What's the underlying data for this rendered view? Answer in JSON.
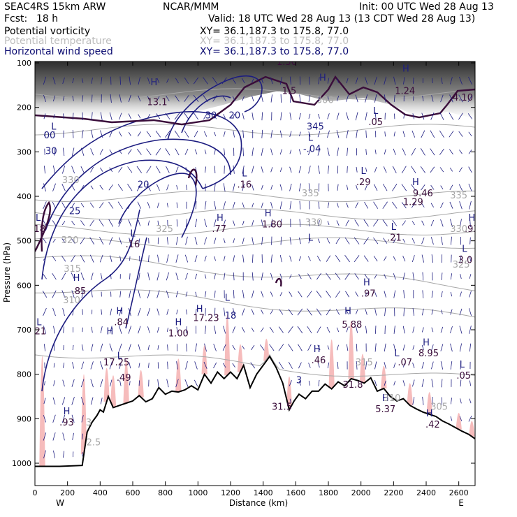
{
  "header": {
    "model": "SEAC4RS 15km ARW",
    "center": "NCAR/MMM",
    "init": "Init: 00 UTC Wed 28 Aug 13",
    "fcst_label": "Fcst:",
    "fcst_value": "18 h",
    "valid": "Valid: 18 UTC Wed 28 Aug 13 (13 CDT Wed 28 Aug 13)",
    "fields": [
      {
        "name": "Potential vorticity",
        "xy": "XY=   36.1,187.3 to 175.8, 77.0"
      },
      {
        "name": "Potential temperature",
        "xy": "XY=   36.1,187.3 to 175.8, 77.0"
      },
      {
        "name": "Horizontal wind speed",
        "xy": "XY=   36.1,187.3 to 175.8, 77.0"
      }
    ]
  },
  "colors": {
    "pv": "#3a0d3a",
    "theta": "#a8a8a8",
    "wind_contour": "#1c1c80",
    "wind_vector": "#1c1c80",
    "terrain": "#000000",
    "cloud_shading": "#9a9a9a",
    "precip_shading": "#f6bcbc"
  },
  "chart_data": {
    "type": "cross-section",
    "xlabel": "Distance (km)",
    "ylabel": "Pressure (hPa)",
    "xlim": [
      0,
      2700
    ],
    "ylim": [
      1050,
      100
    ],
    "x_ticks": [
      0,
      200,
      400,
      600,
      800,
      1000,
      1200,
      1400,
      1600,
      1800,
      2000,
      2200,
      2400,
      2600
    ],
    "y_ticks": [
      100,
      200,
      300,
      400,
      500,
      600,
      700,
      800,
      900,
      1000
    ],
    "x_end_labels": {
      "left": "W",
      "right": "E"
    },
    "terrain_profile": {
      "x": [
        0,
        150,
        290,
        320,
        350,
        380,
        400,
        420,
        450,
        480,
        520,
        560,
        600,
        640,
        680,
        720,
        760,
        800,
        840,
        880,
        920,
        960,
        1000,
        1040,
        1080,
        1120,
        1160,
        1200,
        1240,
        1280,
        1320,
        1360,
        1400,
        1440,
        1480,
        1520,
        1560,
        1590,
        1620,
        1660,
        1700,
        1740,
        1780,
        1820,
        1860,
        1900,
        1940,
        1980,
        2020,
        2060,
        2100,
        2140,
        2180,
        2220,
        2260,
        2300,
        2340,
        2380,
        2420,
        2460,
        2500,
        2540,
        2580,
        2620,
        2660,
        2700
      ],
      "pressure_hpa": [
        1007,
        1007,
        1005,
        930,
        908,
        893,
        880,
        885,
        850,
        875,
        870,
        865,
        860,
        848,
        862,
        855,
        830,
        845,
        838,
        840,
        835,
        826,
        835,
        800,
        820,
        795,
        810,
        795,
        810,
        780,
        830,
        800,
        780,
        760,
        785,
        820,
        880,
        860,
        845,
        855,
        838,
        838,
        822,
        833,
        817,
        826,
        810,
        814,
        820,
        808,
        838,
        832,
        850,
        860,
        855,
        870,
        878,
        885,
        890,
        895,
        905,
        912,
        920,
        928,
        935,
        945
      ]
    },
    "theta_contours_K": [
      300,
      305,
      310,
      315,
      320,
      325,
      330,
      335,
      345
    ],
    "wind_speed_contours": [
      15,
      20,
      25,
      30
    ],
    "extrema_labels": [
      {
        "text": "L",
        "x": 20,
        "p": 455
      },
      {
        "text": ".18",
        "x": 20,
        "p": 480
      },
      {
        "text": "L",
        "x": 25,
        "p": 690
      },
      {
        "text": ".21",
        "x": 25,
        "p": 710
      },
      {
        "text": "L",
        "x": 115,
        "p": 250
      },
      {
        "text": "00",
        "x": 90,
        "p": 270
      },
      {
        "text": "30",
        "x": 100,
        "p": 305
      },
      {
        "text": "25",
        "x": 245,
        "p": 440
      },
      {
        "text": "H",
        "x": 255,
        "p": 590
      },
      {
        "text": ".85",
        "x": 270,
        "p": 620
      },
      {
        "text": "H",
        "x": 195,
        "p": 890
      },
      {
        "text": ".93",
        "x": 195,
        "p": 915
      },
      {
        "text": "L",
        "x": 600,
        "p": 490
      },
      {
        "text": ".16",
        "x": 600,
        "p": 515
      },
      {
        "text": "H",
        "x": 520,
        "p": 665
      },
      {
        "text": ".84",
        "x": 530,
        "p": 690
      },
      {
        "text": "H",
        "x": 460,
        "p": 710
      },
      {
        "text": "17.25",
        "x": 500,
        "p": 780
      },
      {
        "text": "L",
        "x": 520,
        "p": 765
      },
      {
        "text": ".49",
        "x": 545,
        "p": 815
      },
      {
        "text": "20",
        "x": 665,
        "p": 380
      },
      {
        "text": "H",
        "x": 730,
        "p": 150
      },
      {
        "text": "13.1",
        "x": 750,
        "p": 195
      },
      {
        "text": "H",
        "x": 880,
        "p": 690
      },
      {
        "text": "1.00",
        "x": 880,
        "p": 715
      },
      {
        "text": "H",
        "x": 1010,
        "p": 660
      },
      {
        "text": "17.23",
        "x": 1050,
        "p": 680
      },
      {
        "text": "H",
        "x": 1135,
        "p": 455
      },
      {
        "text": ".77",
        "x": 1130,
        "p": 480
      },
      {
        "text": "L",
        "x": 1180,
        "p": 635
      },
      {
        "text": "18",
        "x": 1200,
        "p": 675
      },
      {
        "text": "30",
        "x": 1080,
        "p": 225
      },
      {
        "text": "20",
        "x": 1225,
        "p": 225
      },
      {
        "text": "L",
        "x": 1285,
        "p": 355
      },
      {
        "text": ".16",
        "x": 1285,
        "p": 380
      },
      {
        "text": "H",
        "x": 1430,
        "p": 445
      },
      {
        "text": "1.80",
        "x": 1455,
        "p": 470
      },
      {
        "text": "1.30",
        "x": 1545,
        "p": 105
      },
      {
        "text": "1.5",
        "x": 1560,
        "p": 170
      },
      {
        "text": "345",
        "x": 1720,
        "p": 250
      },
      {
        "text": "L",
        "x": 1690,
        "p": 275
      },
      {
        "text": "-.04",
        "x": 1700,
        "p": 300
      },
      {
        "text": "L",
        "x": 1690,
        "p": 500
      },
      {
        "text": "H",
        "x": 1765,
        "p": 140
      },
      {
        "text": "H",
        "x": 1730,
        "p": 750
      },
      {
        "text": ".46",
        "x": 1740,
        "p": 775
      },
      {
        "text": "L",
        "x": 2015,
        "p": 350
      },
      {
        "text": ".29",
        "x": 2015,
        "p": 375
      },
      {
        "text": "L",
        "x": 2090,
        "p": 215
      },
      {
        "text": ".05",
        "x": 2090,
        "p": 240
      },
      {
        "text": "H",
        "x": 2035,
        "p": 600
      },
      {
        "text": ".97",
        "x": 2045,
        "p": 625
      },
      {
        "text": "H",
        "x": 1920,
        "p": 665
      },
      {
        "text": "5.88",
        "x": 1945,
        "p": 695
      },
      {
        "text": "L",
        "x": 2200,
        "p": 475
      },
      {
        "text": ".21",
        "x": 2205,
        "p": 500
      },
      {
        "text": "H",
        "x": 2275,
        "p": 120
      },
      {
        "text": "1.24",
        "x": 2270,
        "p": 170
      },
      {
        "text": "H",
        "x": 2335,
        "p": 375
      },
      {
        "text": "9.46",
        "x": 2380,
        "p": 400
      },
      {
        "text": "1.29",
        "x": 2320,
        "p": 420
      },
      {
        "text": "L",
        "x": 2220,
        "p": 760
      },
      {
        "text": ".07",
        "x": 2270,
        "p": 780
      },
      {
        "text": "H",
        "x": 2150,
        "p": 860
      },
      {
        "text": "5.37",
        "x": 2150,
        "p": 885
      },
      {
        "text": "H",
        "x": 2400,
        "p": 735
      },
      {
        "text": "8.95",
        "x": 2415,
        "p": 760
      },
      {
        "text": "L",
        "x": 2620,
        "p": 785
      },
      {
        "text": ".05",
        "x": 2630,
        "p": 810
      },
      {
        "text": "H",
        "x": 2420,
        "p": 895
      },
      {
        "text": ".42",
        "x": 2440,
        "p": 920
      },
      {
        "text": "4.10",
        "x": 2625,
        "p": 185
      },
      {
        "text": "H",
        "x": 2680,
        "p": 455
      },
      {
        "text": ".93",
        "x": 2680,
        "p": 480
      },
      {
        "text": "L",
        "x": 2635,
        "p": 525
      },
      {
        "text": "3.0",
        "x": 2640,
        "p": 550
      },
      {
        "text": "31.5",
        "x": 1515,
        "p": 880
      },
      {
        "text": "31.8",
        "x": 1950,
        "p": 830
      },
      {
        "text": "3",
        "x": 1620,
        "p": 820
      }
    ],
    "theta_labels": [
      {
        "text": "320",
        "x": 215,
        "p": 505
      },
      {
        "text": "315",
        "x": 230,
        "p": 570
      },
      {
        "text": "310",
        "x": 225,
        "p": 640
      },
      {
        "text": "330",
        "x": 220,
        "p": 370
      },
      {
        "text": "325",
        "x": 795,
        "p": 480
      },
      {
        "text": "335",
        "x": 1690,
        "p": 400
      },
      {
        "text": "330",
        "x": 1710,
        "p": 465
      },
      {
        "text": "335",
        "x": 2600,
        "p": 405
      },
      {
        "text": "330",
        "x": 2600,
        "p": 480
      },
      {
        "text": "325",
        "x": 2615,
        "p": 560
      },
      {
        "text": "315",
        "x": 2020,
        "p": 780
      },
      {
        "text": "310",
        "x": 2190,
        "p": 860
      },
      {
        "text": "305",
        "x": 2480,
        "p": 880
      },
      {
        "text": "300",
        "x": 1780,
        "p": 190
      },
      {
        "text": "2.5",
        "x": 360,
        "p": 960
      },
      {
        "text": "3",
        "x": 330,
        "p": 915
      }
    ]
  }
}
